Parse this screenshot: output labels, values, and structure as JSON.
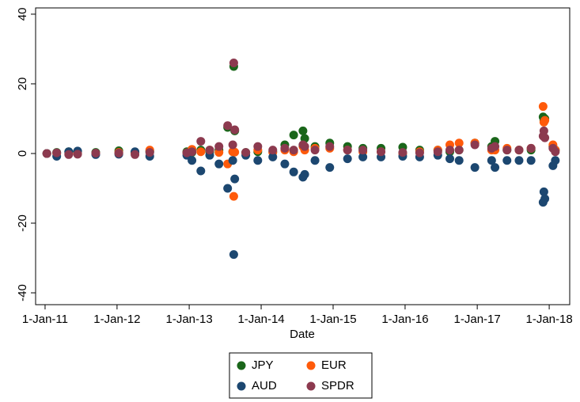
{
  "chart_data": {
    "type": "scatter",
    "x_label": "Date",
    "xlim": [
      "2010-11-14",
      "2018-04-15"
    ],
    "xticks": [
      {
        "value": "2011-01-01",
        "label": "1-Jan-11"
      },
      {
        "value": "2012-01-01",
        "label": "1-Jan-12"
      },
      {
        "value": "2013-01-01",
        "label": "1-Jan-13"
      },
      {
        "value": "2014-01-01",
        "label": "1-Jan-14"
      },
      {
        "value": "2015-01-01",
        "label": "1-Jan-15"
      },
      {
        "value": "2016-01-01",
        "label": "1-Jan-16"
      },
      {
        "value": "2017-01-01",
        "label": "1-Jan-17"
      },
      {
        "value": "2018-01-01",
        "label": "1-Jan-18"
      }
    ],
    "ylim": [
      -43.4,
      41.8
    ],
    "yticks": [
      40,
      20,
      0,
      -20,
      -40
    ],
    "x": [
      "2011-01-10",
      "2011-03-01",
      "2011-05-01",
      "2011-06-15",
      "2011-09-15",
      "2012-01-10",
      "2012-04-01",
      "2012-06-15",
      "2012-12-20",
      "2013-01-15",
      "2013-03-01",
      "2013-04-15",
      "2013-06-01",
      "2013-07-15",
      "2013-08-10",
      "2013-08-15",
      "2013-08-20",
      "2013-10-15",
      "2013-12-15",
      "2014-03-01",
      "2014-05-01",
      "2014-06-15",
      "2014-08-01",
      "2014-08-10",
      "2014-10-01",
      "2014-12-15",
      "2015-03-15",
      "2015-06-01",
      "2015-09-01",
      "2015-12-20",
      "2016-03-15",
      "2016-06-15",
      "2016-08-15",
      "2016-10-01",
      "2016-12-20",
      "2017-03-15",
      "2017-04-01",
      "2017-06-01",
      "2017-08-01",
      "2017-10-01",
      "2017-12-01",
      "2017-12-05",
      "2017-12-10",
      "2018-01-20",
      "2018-02-01"
    ],
    "series": [
      {
        "name": "JPY",
        "color": "#1a661a",
        "values": [
          0,
          0.3,
          0.5,
          0.6,
          0.3,
          0.8,
          0.4,
          0.6,
          0.5,
          0.3,
          1,
          0.5,
          1,
          7.5,
          0.5,
          25,
          6.5,
          0.3,
          0.5,
          0.5,
          2.5,
          5.3,
          6.5,
          4.3,
          2,
          3,
          2,
          1.5,
          1.5,
          1.8,
          1,
          1,
          0.5,
          1,
          3,
          2,
          3.5,
          1,
          1,
          1,
          10.5,
          9.5,
          10,
          2,
          1
        ]
      },
      {
        "name": "EUR",
        "color": "#ff5a0a",
        "values": [
          0,
          0,
          0,
          0,
          0,
          0.3,
          0.2,
          1,
          0.2,
          1.2,
          0.5,
          1,
          0.3,
          -3,
          0.5,
          -12.3,
          0.4,
          0.2,
          1,
          0.3,
          1,
          0.5,
          2,
          1,
          1.5,
          1.5,
          1,
          0.5,
          0.5,
          0,
          0.5,
          1,
          2.5,
          3,
          3,
          1,
          1,
          1.5,
          1,
          1.5,
          13.5,
          9,
          9.5,
          2.5,
          1
        ]
      },
      {
        "name": "AUD",
        "color": "#1c4770",
        "values": [
          0,
          -0.8,
          0.5,
          0.7,
          -0.3,
          -0.2,
          0.5,
          -0.8,
          -0.5,
          -2,
          -5,
          -0.5,
          -3,
          -10,
          -2,
          -29,
          -7.3,
          -0.5,
          -2,
          -1,
          -3,
          -5.3,
          -6.8,
          -6,
          -2,
          -4,
          -1.5,
          -1,
          -1,
          -0.8,
          -1,
          -0.5,
          -1.5,
          -2,
          -4,
          -2,
          -4,
          -2,
          -2,
          -2,
          -14,
          -11,
          -13,
          -3.5,
          -2
        ]
      },
      {
        "name": "SPDR",
        "color": "#8c3a4f",
        "values": [
          0,
          0.2,
          -0.3,
          -0.2,
          0.1,
          0.1,
          -0.3,
          0.3,
          0.2,
          0.5,
          3.5,
          1,
          2,
          8,
          2.5,
          26,
          6.8,
          0.3,
          2,
          1,
          1.5,
          1,
          2.5,
          2,
          1,
          2,
          1,
          1,
          0.5,
          0.3,
          0.2,
          0.5,
          1,
          1,
          2.5,
          1.5,
          2,
          1,
          1,
          1.5,
          5,
          6.5,
          4.5,
          1.5,
          0.5
        ]
      }
    ]
  }
}
